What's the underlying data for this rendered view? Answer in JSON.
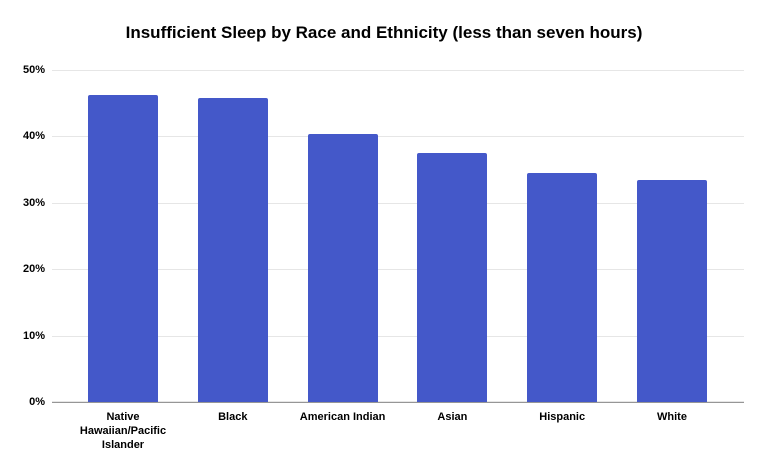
{
  "title": "Insufficient Sleep by Race and Ethnicity (less than seven hours)",
  "chart_data": {
    "type": "bar",
    "title": "Insufficient Sleep by Race and Ethnicity (less than seven hours)",
    "categories": [
      "Native Hawaiian/Pacific Islander",
      "Black",
      "American Indian",
      "Asian",
      "Hispanic",
      "White"
    ],
    "values": [
      46.3,
      45.8,
      40.4,
      37.5,
      34.5,
      33.4
    ],
    "xlabel": "",
    "ylabel": "",
    "ylim": [
      0,
      50
    ],
    "yticks": [
      0,
      10,
      20,
      30,
      40,
      50
    ],
    "ytick_labels": [
      "0%",
      "10%",
      "20%",
      "30%",
      "40%",
      "50%"
    ],
    "grid": "horizontal-only",
    "legend": "none",
    "colors": {
      "bar": "#4458c9",
      "gridline": "#e6e6e6",
      "axis_line": "#969696",
      "text": "#000000",
      "background": "#ffffff"
    }
  }
}
